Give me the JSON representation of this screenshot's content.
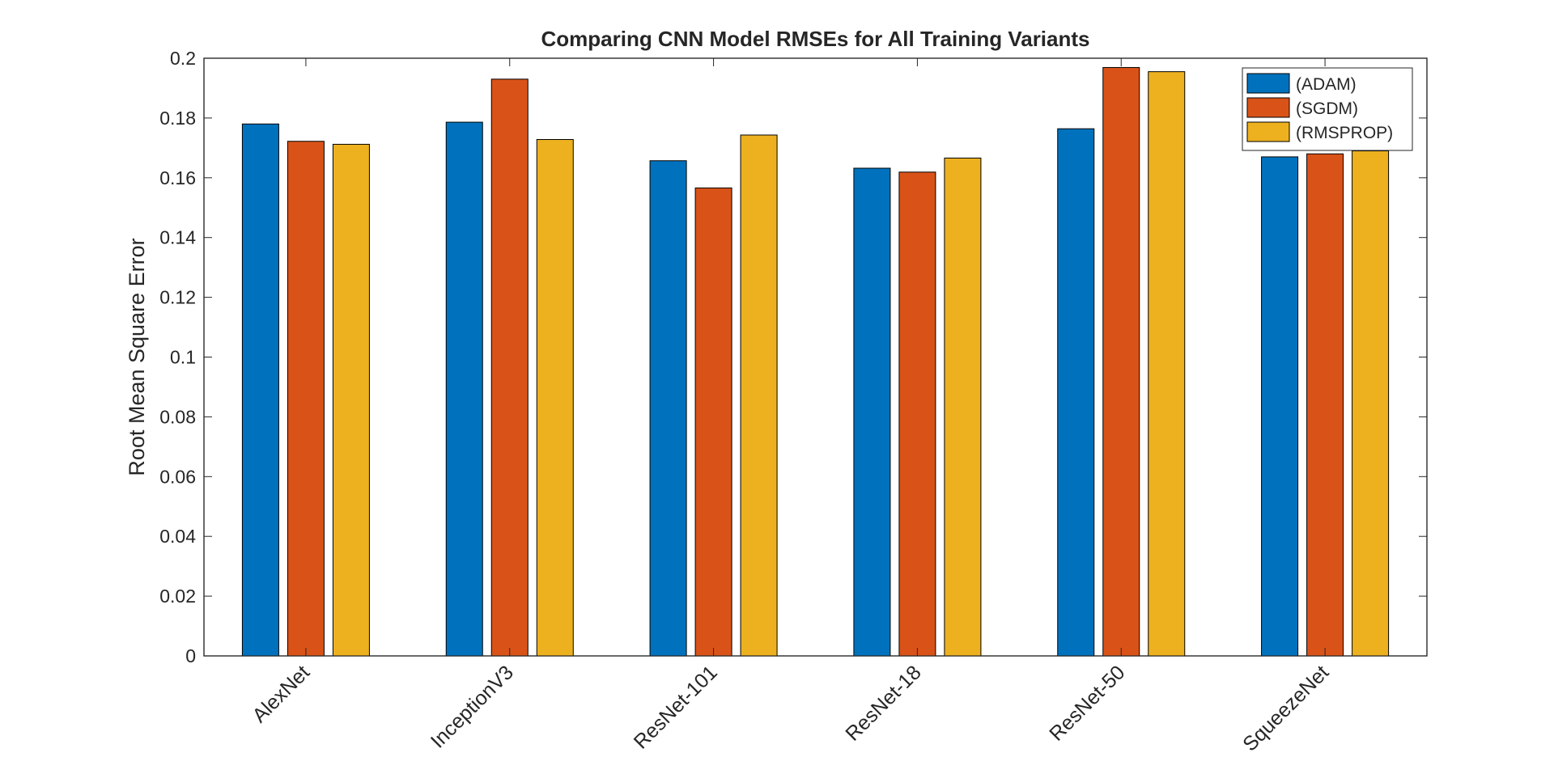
{
  "chart_data": {
    "type": "bar",
    "title": "Comparing CNN Model RMSEs for All Training Variants",
    "xlabel": "",
    "ylabel": "Root Mean Square Error",
    "ylim": [
      0,
      0.2
    ],
    "yticks": [
      0,
      0.02,
      0.04,
      0.06,
      0.08,
      0.1,
      0.12,
      0.14,
      0.16,
      0.18,
      0.2
    ],
    "ytick_labels": [
      "0",
      "0.02",
      "0.04",
      "0.06",
      "0.08",
      "0.1",
      "0.12",
      "0.14",
      "0.16",
      "0.18",
      "0.2"
    ],
    "categories": [
      "AlexNet",
      "InceptionV3",
      "ResNet-101",
      "ResNet-18",
      "ResNet-50",
      "SqueezeNet"
    ],
    "series": [
      {
        "name": "(ADAM)",
        "color": "#0072BD",
        "values": [
          0.178,
          0.1786,
          0.1657,
          0.1632,
          0.1764,
          0.167
        ]
      },
      {
        "name": "(SGDM)",
        "color": "#D95319",
        "values": [
          0.1722,
          0.193,
          0.1566,
          0.1619,
          0.1969,
          0.168
        ]
      },
      {
        "name": "(RMSPROP)",
        "color": "#EDB120",
        "values": [
          0.1712,
          0.1728,
          0.1743,
          0.1666,
          0.1955,
          0.169
        ]
      }
    ],
    "grid": false,
    "legend_position": "top-right"
  }
}
